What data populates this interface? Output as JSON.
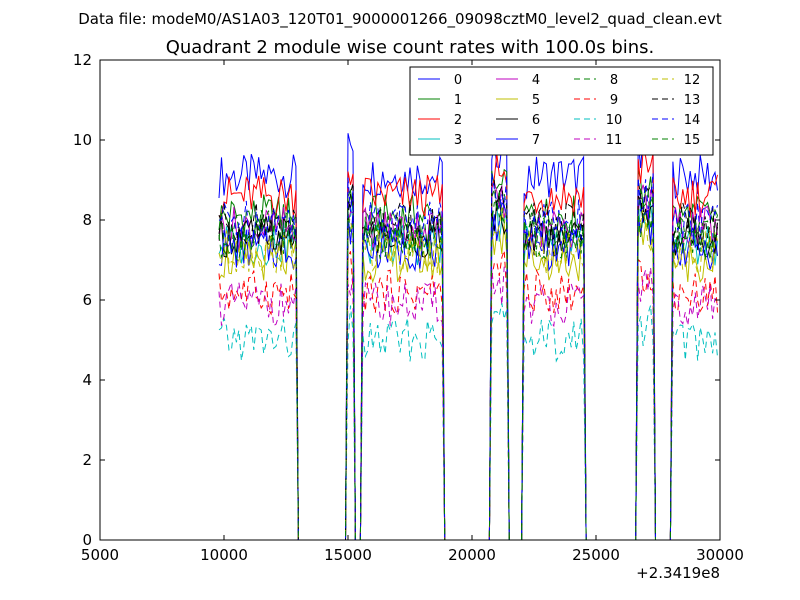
{
  "figure": {
    "suptitle": "Data file: modeM0/AS1A03_120T01_9000001266_09098cztM0_level2_quad_clean.evt",
    "x_offset_label": "+2.3419e8"
  },
  "chart_data": {
    "type": "line",
    "title": "Quadrant 2 module wise count rates with 100.0s bins.",
    "xlabel": "",
    "ylabel": "",
    "xlim": [
      5000,
      30000
    ],
    "ylim": [
      0,
      12
    ],
    "x_ticks": [
      5000,
      10000,
      15000,
      20000,
      25000,
      30000
    ],
    "x_tick_labels": [
      "5000",
      "10000",
      "15000",
      "20000",
      "25000",
      "30000"
    ],
    "y_ticks": [
      0,
      2,
      4,
      6,
      8,
      10,
      12
    ],
    "y_tick_labels": [
      "0",
      "2",
      "4",
      "6",
      "8",
      "10",
      "12"
    ],
    "grid": false,
    "legend_position": "top-right",
    "legend_columns": 4,
    "bin_seconds": 100,
    "segments": [
      {
        "start": 9800,
        "end": 12950
      },
      {
        "start": 14950,
        "end": 15250
      },
      {
        "start": 15550,
        "end": 18850
      },
      {
        "start": 20750,
        "end": 21400
      },
      {
        "start": 22050,
        "end": 24550
      },
      {
        "start": 26650,
        "end": 27350
      },
      {
        "start": 28100,
        "end": 29950
      }
    ],
    "series": [
      {
        "name": "0",
        "color": "#0000ff",
        "style": "solid",
        "base_level": 9.1
      },
      {
        "name": "1",
        "color": "#008000",
        "style": "solid",
        "base_level": 8.1
      },
      {
        "name": "2",
        "color": "#ff0000",
        "style": "solid",
        "base_level": 8.6
      },
      {
        "name": "3",
        "color": "#00bfbf",
        "style": "solid",
        "base_level": 7.4
      },
      {
        "name": "4",
        "color": "#bf00bf",
        "style": "solid",
        "base_level": 7.8
      },
      {
        "name": "5",
        "color": "#bfbf00",
        "style": "solid",
        "base_level": 7.0
      },
      {
        "name": "6",
        "color": "#000000",
        "style": "solid",
        "base_level": 7.6
      },
      {
        "name": "7",
        "color": "#0000ff",
        "style": "solid",
        "base_level": 7.3
      },
      {
        "name": "8",
        "color": "#008000",
        "style": "dashed",
        "base_level": 7.7
      },
      {
        "name": "9",
        "color": "#ff0000",
        "style": "dashed",
        "base_level": 6.2
      },
      {
        "name": "10",
        "color": "#00bfbf",
        "style": "dashed",
        "base_level": 5.0
      },
      {
        "name": "11",
        "color": "#bf00bf",
        "style": "dashed",
        "base_level": 5.9
      },
      {
        "name": "12",
        "color": "#bfbf00",
        "style": "dashed",
        "base_level": 7.2
      },
      {
        "name": "13",
        "color": "#000000",
        "style": "dashed",
        "base_level": 7.9
      },
      {
        "name": "14",
        "color": "#0000ff",
        "style": "dashed",
        "base_level": 8.0
      },
      {
        "name": "15",
        "color": "#008000",
        "style": "dashed",
        "base_level": 7.5
      }
    ]
  }
}
